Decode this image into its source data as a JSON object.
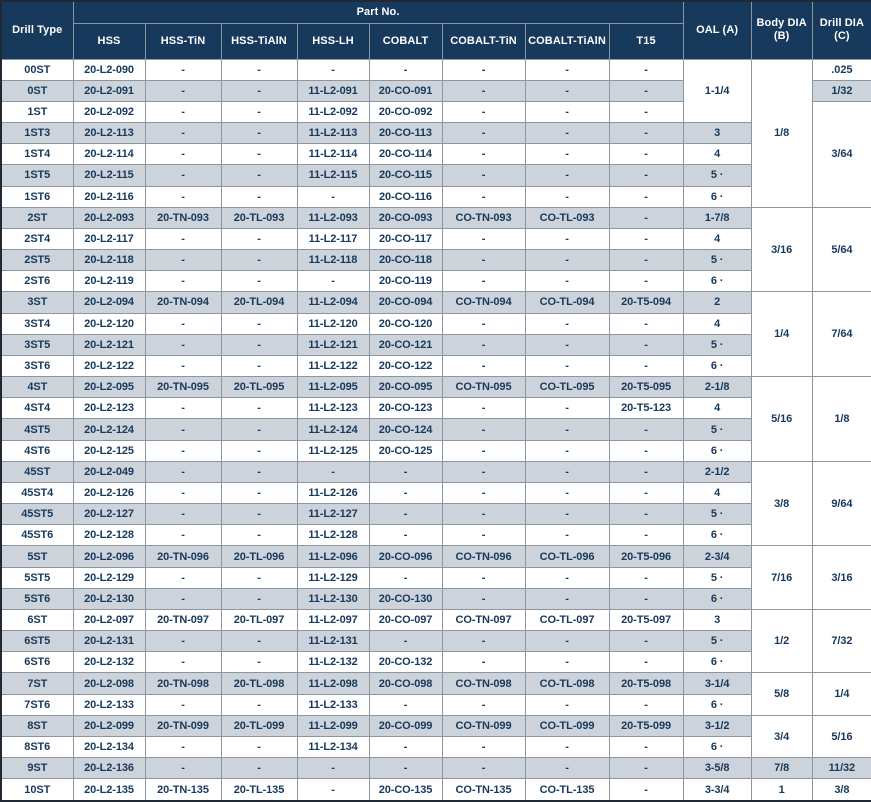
{
  "colors": {
    "header_bg": "#17395c",
    "header_text": "#ffffff",
    "row_shaded": "#ccd3da",
    "row_white": "#ffffff",
    "data_text": "#17395c",
    "grid_line": "#8d969e"
  },
  "table": {
    "header": {
      "drill_type": "Drill Type",
      "part_no_group": "Part No.",
      "part_columns": [
        "HSS",
        "HSS-TiN",
        "HSS-TiAlN",
        "HSS-LH",
        "COBALT",
        "COBALT-TiN",
        "COBALT-TiAlN",
        "T15"
      ],
      "oal": "OAL (A)",
      "body_dia_line1": "Body DIA",
      "body_dia_line2": "(B)",
      "drill_dia_line1": "Drill DIA",
      "drill_dia_line2": "(C)"
    },
    "rows": [
      {
        "type": "00ST",
        "parts": [
          "20-L2-090",
          "-",
          "-",
          "-",
          "-",
          "-",
          "-",
          "-"
        ],
        "oal": {
          "text": "1-1/4",
          "span": 3
        },
        "body": {
          "text": "1/8",
          "span": 7
        },
        "drill": {
          "text": ".025",
          "span": 1
        }
      },
      {
        "type": "0ST",
        "parts": [
          "20-L2-091",
          "-",
          "-",
          "11-L2-091",
          "20-CO-091",
          "-",
          "-",
          "-"
        ],
        "oal": null,
        "body": null,
        "drill": {
          "text": "1/32",
          "span": 1
        }
      },
      {
        "type": "1ST",
        "parts": [
          "20-L2-092",
          "-",
          "-",
          "11-L2-092",
          "20-CO-092",
          "-",
          "-",
          "-"
        ],
        "oal": null,
        "body": null,
        "drill": {
          "text": "3/64",
          "span": 5
        }
      },
      {
        "type": "1ST3",
        "parts": [
          "20-L2-113",
          "-",
          "-",
          "11-L2-113",
          "20-CO-113",
          "-",
          "-",
          "-"
        ],
        "oal": {
          "text": "3",
          "span": 1
        },
        "body": null,
        "drill": null
      },
      {
        "type": "1ST4",
        "parts": [
          "20-L2-114",
          "-",
          "-",
          "11-L2-114",
          "20-CO-114",
          "-",
          "-",
          "-"
        ],
        "oal": {
          "text": "4",
          "span": 1
        },
        "body": null,
        "drill": null
      },
      {
        "type": "1ST5",
        "parts": [
          "20-L2-115",
          "-",
          "-",
          "11-L2-115",
          "20-CO-115",
          "-",
          "-",
          "-"
        ],
        "oal": {
          "text": "5 ·",
          "span": 1
        },
        "body": null,
        "drill": null
      },
      {
        "type": "1ST6",
        "parts": [
          "20-L2-116",
          "-",
          "-",
          "-",
          "20-CO-116",
          "-",
          "-",
          "-"
        ],
        "oal": {
          "text": "6 ·",
          "span": 1
        },
        "body": null,
        "drill": null
      },
      {
        "type": "2ST",
        "parts": [
          "20-L2-093",
          "20-TN-093",
          "20-TL-093",
          "11-L2-093",
          "20-CO-093",
          "CO-TN-093",
          "CO-TL-093",
          "-"
        ],
        "oal": {
          "text": "1-7/8",
          "span": 1
        },
        "body": {
          "text": "3/16",
          "span": 4
        },
        "drill": {
          "text": "5/64",
          "span": 4
        }
      },
      {
        "type": "2ST4",
        "parts": [
          "20-L2-117",
          "-",
          "-",
          "11-L2-117",
          "20-CO-117",
          "-",
          "-",
          "-"
        ],
        "oal": {
          "text": "4",
          "span": 1
        },
        "body": null,
        "drill": null
      },
      {
        "type": "2ST5",
        "parts": [
          "20-L2-118",
          "-",
          "-",
          "11-L2-118",
          "20-CO-118",
          "-",
          "-",
          "-"
        ],
        "oal": {
          "text": "5 ·",
          "span": 1
        },
        "body": null,
        "drill": null
      },
      {
        "type": "2ST6",
        "parts": [
          "20-L2-119",
          "-",
          "-",
          "-",
          "20-CO-119",
          "-",
          "-",
          "-"
        ],
        "oal": {
          "text": "6 ·",
          "span": 1
        },
        "body": null,
        "drill": null
      },
      {
        "type": "3ST",
        "parts": [
          "20-L2-094",
          "20-TN-094",
          "20-TL-094",
          "11-L2-094",
          "20-CO-094",
          "CO-TN-094",
          "CO-TL-094",
          "20-T5-094"
        ],
        "oal": {
          "text": "2",
          "span": 1
        },
        "body": {
          "text": "1/4",
          "span": 4
        },
        "drill": {
          "text": "7/64",
          "span": 4
        }
      },
      {
        "type": "3ST4",
        "parts": [
          "20-L2-120",
          "-",
          "-",
          "11-L2-120",
          "20-CO-120",
          "-",
          "-",
          "-"
        ],
        "oal": {
          "text": "4",
          "span": 1
        },
        "body": null,
        "drill": null
      },
      {
        "type": "3ST5",
        "parts": [
          "20-L2-121",
          "-",
          "-",
          "11-L2-121",
          "20-CO-121",
          "-",
          "-",
          "-"
        ],
        "oal": {
          "text": "5 ·",
          "span": 1
        },
        "body": null,
        "drill": null
      },
      {
        "type": "3ST6",
        "parts": [
          "20-L2-122",
          "-",
          "-",
          "11-L2-122",
          "20-CO-122",
          "-",
          "-",
          "-"
        ],
        "oal": {
          "text": "6 ·",
          "span": 1
        },
        "body": null,
        "drill": null
      },
      {
        "type": "4ST",
        "parts": [
          "20-L2-095",
          "20-TN-095",
          "20-TL-095",
          "11-L2-095",
          "20-CO-095",
          "CO-TN-095",
          "CO-TL-095",
          "20-T5-095"
        ],
        "oal": {
          "text": "2-1/8",
          "span": 1
        },
        "body": {
          "text": "5/16",
          "span": 4
        },
        "drill": {
          "text": "1/8",
          "span": 4
        }
      },
      {
        "type": "4ST4",
        "parts": [
          "20-L2-123",
          "-",
          "-",
          "11-L2-123",
          "20-CO-123",
          "-",
          "-",
          "20-T5-123"
        ],
        "oal": {
          "text": "4",
          "span": 1
        },
        "body": null,
        "drill": null
      },
      {
        "type": "4ST5",
        "parts": [
          "20-L2-124",
          "-",
          "-",
          "11-L2-124",
          "20-CO-124",
          "-",
          "-",
          "-"
        ],
        "oal": {
          "text": "5 ·",
          "span": 1
        },
        "body": null,
        "drill": null
      },
      {
        "type": "4ST6",
        "parts": [
          "20-L2-125",
          "-",
          "-",
          "11-L2-125",
          "20-CO-125",
          "-",
          "-",
          "-"
        ],
        "oal": {
          "text": "6 ·",
          "span": 1
        },
        "body": null,
        "drill": null
      },
      {
        "type": "45ST",
        "parts": [
          "20-L2-049",
          "-",
          "-",
          "-",
          "-",
          "-",
          "-",
          "-"
        ],
        "oal": {
          "text": "2-1/2",
          "span": 1
        },
        "body": {
          "text": "3/8",
          "span": 4
        },
        "drill": {
          "text": "9/64",
          "span": 4
        }
      },
      {
        "type": "45ST4",
        "parts": [
          "20-L2-126",
          "-",
          "-",
          "11-L2-126",
          "-",
          "-",
          "-",
          "-"
        ],
        "oal": {
          "text": "4",
          "span": 1
        },
        "body": null,
        "drill": null
      },
      {
        "type": "45ST5",
        "parts": [
          "20-L2-127",
          "-",
          "-",
          "11-L2-127",
          "-",
          "-",
          "-",
          "-"
        ],
        "oal": {
          "text": "5 ·",
          "span": 1
        },
        "body": null,
        "drill": null
      },
      {
        "type": "45ST6",
        "parts": [
          "20-L2-128",
          "-",
          "-",
          "11-L2-128",
          "-",
          "-",
          "-",
          "-"
        ],
        "oal": {
          "text": "6 ·",
          "span": 1
        },
        "body": null,
        "drill": null
      },
      {
        "type": "5ST",
        "parts": [
          "20-L2-096",
          "20-TN-096",
          "20-TL-096",
          "11-L2-096",
          "20-CO-096",
          "CO-TN-096",
          "CO-TL-096",
          "20-T5-096"
        ],
        "oal": {
          "text": "2-3/4",
          "span": 1
        },
        "body": {
          "text": "7/16",
          "span": 3
        },
        "drill": {
          "text": "3/16",
          "span": 3
        }
      },
      {
        "type": "5ST5",
        "parts": [
          "20-L2-129",
          "-",
          "-",
          "11-L2-129",
          "-",
          "-",
          "-",
          "-"
        ],
        "oal": {
          "text": "5 ·",
          "span": 1
        },
        "body": null,
        "drill": null
      },
      {
        "type": "5ST6",
        "parts": [
          "20-L2-130",
          "-",
          "-",
          "11-L2-130",
          "20-CO-130",
          "-",
          "-",
          "-"
        ],
        "oal": {
          "text": "6 ·",
          "span": 1
        },
        "body": null,
        "drill": null
      },
      {
        "type": "6ST",
        "parts": [
          "20-L2-097",
          "20-TN-097",
          "20-TL-097",
          "11-L2-097",
          "20-CO-097",
          "CO-TN-097",
          "CO-TL-097",
          "20-T5-097"
        ],
        "oal": {
          "text": "3",
          "span": 1
        },
        "body": {
          "text": "1/2",
          "span": 3
        },
        "drill": {
          "text": "7/32",
          "span": 3
        }
      },
      {
        "type": "6ST5",
        "parts": [
          "20-L2-131",
          "-",
          "-",
          "11-L2-131",
          "-",
          "-",
          "-",
          "-"
        ],
        "oal": {
          "text": "5 ·",
          "span": 1
        },
        "body": null,
        "drill": null
      },
      {
        "type": "6ST6",
        "parts": [
          "20-L2-132",
          "-",
          "-",
          "11-L2-132",
          "20-CO-132",
          "-",
          "-",
          "-"
        ],
        "oal": {
          "text": "6 ·",
          "span": 1
        },
        "body": null,
        "drill": null
      },
      {
        "type": "7ST",
        "parts": [
          "20-L2-098",
          "20-TN-098",
          "20-TL-098",
          "11-L2-098",
          "20-CO-098",
          "CO-TN-098",
          "CO-TL-098",
          "20-T5-098"
        ],
        "oal": {
          "text": "3-1/4",
          "span": 1
        },
        "body": {
          "text": "5/8",
          "span": 2
        },
        "drill": {
          "text": "1/4",
          "span": 2
        }
      },
      {
        "type": "7ST6",
        "parts": [
          "20-L2-133",
          "-",
          "-",
          "11-L2-133",
          "-",
          "-",
          "-",
          "-"
        ],
        "oal": {
          "text": "6 ·",
          "span": 1
        },
        "body": null,
        "drill": null
      },
      {
        "type": "8ST",
        "parts": [
          "20-L2-099",
          "20-TN-099",
          "20-TL-099",
          "11-L2-099",
          "20-CO-099",
          "CO-TN-099",
          "CO-TL-099",
          "20-T5-099"
        ],
        "oal": {
          "text": "3-1/2",
          "span": 1
        },
        "body": {
          "text": "3/4",
          "span": 2
        },
        "drill": {
          "text": "5/16",
          "span": 2
        }
      },
      {
        "type": "8ST6",
        "parts": [
          "20-L2-134",
          "-",
          "-",
          "11-L2-134",
          "-",
          "-",
          "-",
          "-"
        ],
        "oal": {
          "text": "6 ·",
          "span": 1
        },
        "body": null,
        "drill": null
      },
      {
        "type": "9ST",
        "parts": [
          "20-L2-136",
          "-",
          "-",
          "-",
          "-",
          "-",
          "-",
          "-"
        ],
        "oal": {
          "text": "3-5/8",
          "span": 1
        },
        "body": {
          "text": "7/8",
          "span": 1
        },
        "drill": {
          "text": "11/32",
          "span": 1
        }
      },
      {
        "type": "10ST",
        "parts": [
          "20-L2-135",
          "20-TN-135",
          "20-TL-135",
          "-",
          "20-CO-135",
          "CO-TN-135",
          "CO-TL-135",
          "-"
        ],
        "oal": {
          "text": "3-3/4",
          "span": 1
        },
        "body": {
          "text": "1",
          "span": 1
        },
        "drill": {
          "text": "3/8",
          "span": 1
        }
      }
    ]
  }
}
